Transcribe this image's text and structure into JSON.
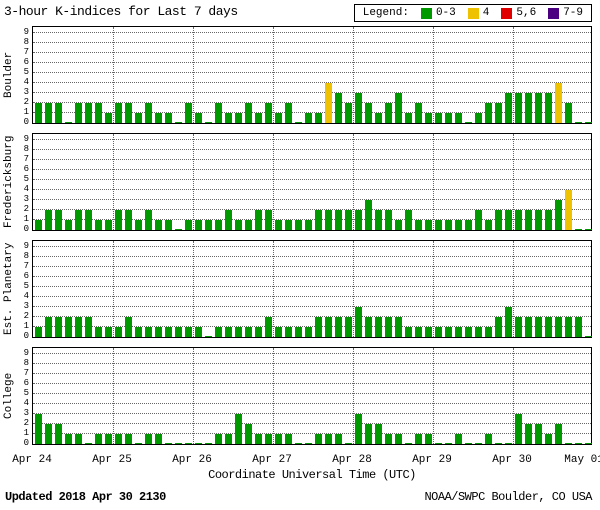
{
  "chart_data": {
    "type": "bar",
    "title": "3-hour K-indices for Last 7 days",
    "xlabel": "Coordinate Universal Time (UTC)",
    "ylim": [
      0,
      9
    ],
    "yticks": [
      0,
      1,
      2,
      3,
      4,
      5,
      6,
      7,
      8,
      9
    ],
    "x_tick_labels": [
      "Apr 24",
      "Apr 25",
      "Apr 26",
      "Apr 27",
      "Apr 28",
      "Apr 29",
      "Apr 30",
      "May 01"
    ],
    "bars_per_day": 8,
    "grid": "dotted",
    "legend": {
      "label": "Legend:",
      "position": "top-right",
      "items": [
        {
          "label": "0-3",
          "color": "#009a00"
        },
        {
          "label": "4",
          "color": "#eec200"
        },
        {
          "label": "5,6",
          "color": "#e00000"
        },
        {
          "label": "7-9",
          "color": "#4b0082"
        }
      ]
    },
    "color_rules": [
      {
        "max": 3,
        "color": "#009a00"
      },
      {
        "max": 4,
        "color": "#eec200"
      },
      {
        "max": 6,
        "color": "#e00000"
      },
      {
        "max": 9,
        "color": "#4b0082"
      }
    ],
    "series": [
      {
        "name": "Boulder",
        "values": [
          2,
          2,
          2,
          0,
          2,
          2,
          2,
          1,
          2,
          2,
          1,
          2,
          1,
          1,
          0,
          2,
          1,
          0,
          2,
          1,
          1,
          2,
          1,
          2,
          1,
          2,
          0,
          1,
          1,
          4,
          3,
          2,
          3,
          2,
          1,
          2,
          3,
          1,
          2,
          1,
          1,
          1,
          1,
          0,
          1,
          2,
          2,
          3,
          3,
          3,
          3,
          3,
          4,
          2,
          0,
          0
        ]
      },
      {
        "name": "Fredericksburg",
        "values": [
          1,
          2,
          2,
          1,
          2,
          2,
          1,
          1,
          2,
          2,
          1,
          2,
          1,
          1,
          0,
          1,
          1,
          1,
          1,
          2,
          1,
          1,
          2,
          2,
          1,
          1,
          1,
          1,
          2,
          2,
          2,
          2,
          2,
          3,
          2,
          2,
          1,
          2,
          1,
          1,
          1,
          1,
          1,
          1,
          2,
          1,
          2,
          2,
          2,
          2,
          2,
          2,
          3,
          4,
          0,
          0
        ]
      },
      {
        "name": "Est. Planetary",
        "values": [
          1,
          2,
          2,
          2,
          2,
          2,
          1,
          1,
          1,
          2,
          1,
          1,
          1,
          1,
          1,
          1,
          1,
          0,
          1,
          1,
          1,
          1,
          1,
          2,
          1,
          1,
          1,
          1,
          2,
          2,
          2,
          2,
          3,
          2,
          2,
          2,
          2,
          1,
          1,
          1,
          1,
          1,
          1,
          1,
          1,
          1,
          2,
          3,
          2,
          2,
          2,
          2,
          2,
          2,
          2,
          0
        ]
      },
      {
        "name": "College",
        "values": [
          3,
          2,
          2,
          1,
          1,
          0,
          1,
          1,
          1,
          1,
          0,
          1,
          1,
          0,
          0,
          0,
          0,
          0,
          1,
          1,
          3,
          2,
          1,
          1,
          1,
          1,
          0,
          0,
          1,
          1,
          1,
          0,
          3,
          2,
          2,
          1,
          1,
          0,
          1,
          1,
          0,
          0,
          1,
          0,
          0,
          1,
          0,
          0,
          3,
          2,
          2,
          1,
          2,
          0,
          0,
          0
        ]
      }
    ]
  },
  "footer": {
    "updated": "Updated 2018 Apr 30 2130",
    "agency": "NOAA/SWPC Boulder, CO USA"
  }
}
